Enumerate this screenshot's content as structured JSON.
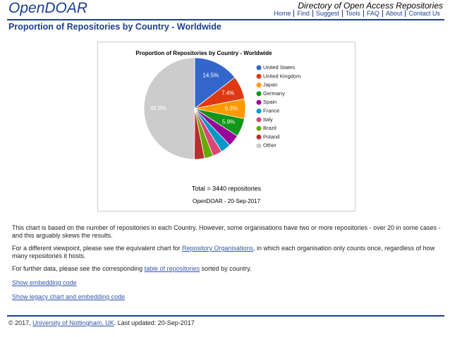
{
  "header": {
    "logo": "OpenDOAR",
    "tagline": "Directory of Open Access Repositories",
    "nav": [
      "Home",
      "Find",
      "Suggest",
      "Tools",
      "FAQ",
      "About",
      "Contact Us"
    ]
  },
  "page_title": "Proportion of Repositories by Country - Worldwide",
  "chart_data": {
    "type": "pie",
    "title": "Proportion of Repositories by Country - Worldwide",
    "categories": [
      "United States",
      "United Kingdom",
      "Japan",
      "Germany",
      "Spain",
      "France",
      "Italy",
      "Brazil",
      "Poland",
      "Other"
    ],
    "values": [
      14.5,
      7.4,
      6.3,
      5.9,
      3.7,
      3.3,
      3.0,
      2.8,
      3.2,
      49.9
    ],
    "value_labels": [
      "14.5%",
      "7.4%",
      "6.3%",
      "5.9%",
      null,
      null,
      null,
      null,
      null,
      "49.9%"
    ],
    "colors": [
      "#3366cc",
      "#dc3912",
      "#ff9900",
      "#109618",
      "#990099",
      "#0099c6",
      "#dd4477",
      "#66aa00",
      "#b82e2e",
      "#cccccc"
    ],
    "total": "Total = 3440 repositories",
    "source": "OpenDOAR - 20-Sep-2017"
  },
  "paragraphs": [
    {
      "text": "This chart is based on the number of repositories in each Country. However, some organisations have two or more repositories - over 20 in some cases - and this arguably skews the results."
    },
    {
      "before": "For a different viewpoint, please see the equivalent chart for ",
      "link": "Repository Organisations",
      "after": ", in which each organisation only counts once, regardless of how many repositories it hosts."
    },
    {
      "before": "For further data, please see the corresponding ",
      "link": "table of repositories",
      "after": " sorted by country."
    }
  ],
  "links": [
    "Show embedding code",
    "Show legacy chart and embedding code"
  ],
  "footer": {
    "before": "© 2017, ",
    "link": "University of Nottingham, UK",
    "after": ". Last updated: 20-Sep-2017"
  }
}
